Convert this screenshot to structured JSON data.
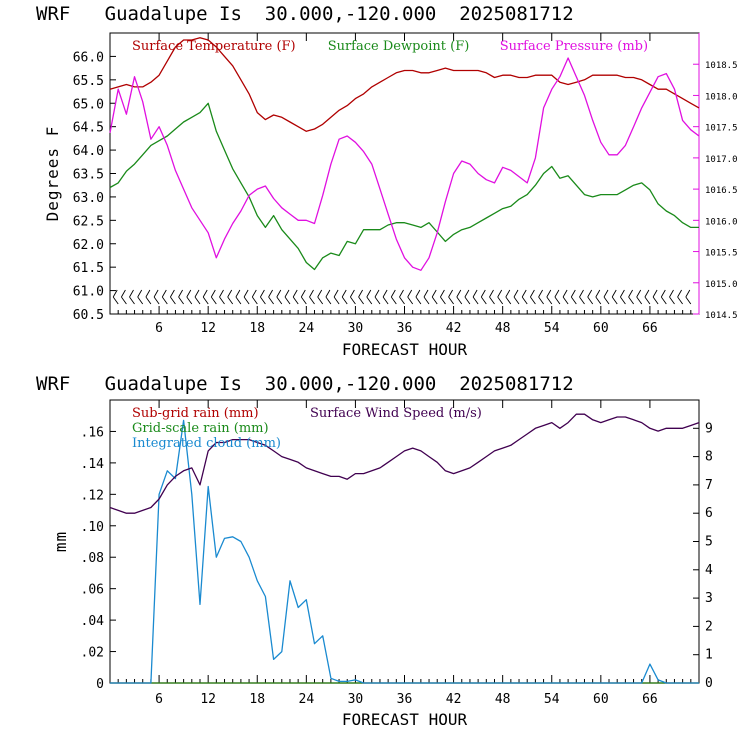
{
  "chart_data": [
    {
      "type": "line",
      "title": "WRF   Guadalupe Is  30.000,-120.000  2025081712",
      "xlabel": "FORECAST HOUR",
      "ylabel": "Degrees F",
      "xlim": [
        0,
        72
      ],
      "x_ticks": [
        "6",
        "12",
        "18",
        "24",
        "30",
        "36",
        "42",
        "48",
        "54",
        "60",
        "66"
      ],
      "ylim": [
        60.5,
        66.5
      ],
      "y_ticks": [
        "60.5",
        "61.0",
        "61.5",
        "62.0",
        "62.5",
        "63.0",
        "63.5",
        "64.0",
        "64.5",
        "65.0",
        "65.5",
        "66.0"
      ],
      "y2lim": [
        1014.5,
        1019.0
      ],
      "y2_ticks": [
        "1014.5",
        "1015.0",
        "1015.5",
        "1016.0",
        "1016.5",
        "1017.0",
        "1017.5",
        "1018.0",
        "1018.5"
      ],
      "x": [
        0,
        1,
        2,
        3,
        4,
        5,
        6,
        7,
        8,
        9,
        10,
        11,
        12,
        13,
        14,
        15,
        16,
        17,
        18,
        19,
        20,
        21,
        22,
        23,
        24,
        25,
        26,
        27,
        28,
        29,
        30,
        31,
        32,
        33,
        34,
        35,
        36,
        37,
        38,
        39,
        40,
        41,
        42,
        43,
        44,
        45,
        46,
        47,
        48,
        49,
        50,
        51,
        52,
        53,
        54,
        55,
        56,
        57,
        58,
        59,
        60,
        61,
        62,
        63,
        64,
        65,
        66,
        67,
        68,
        69,
        70,
        71,
        72
      ],
      "series": [
        {
          "name": "Surface Temperature (F)",
          "color": "#b00000",
          "axis": "left",
          "values": [
            65.3,
            65.35,
            65.4,
            65.35,
            65.35,
            65.45,
            65.6,
            65.9,
            66.2,
            66.35,
            66.35,
            66.4,
            66.35,
            66.2,
            66.0,
            65.8,
            65.5,
            65.2,
            64.8,
            64.65,
            64.75,
            64.7,
            64.6,
            64.5,
            64.4,
            64.45,
            64.55,
            64.7,
            64.85,
            64.95,
            65.1,
            65.2,
            65.35,
            65.45,
            65.55,
            65.65,
            65.7,
            65.7,
            65.65,
            65.65,
            65.7,
            65.75,
            65.7,
            65.7,
            65.7,
            65.7,
            65.65,
            65.55,
            65.6,
            65.6,
            65.55,
            65.55,
            65.6,
            65.6,
            65.6,
            65.45,
            65.4,
            65.45,
            65.5,
            65.6,
            65.6,
            65.6,
            65.6,
            65.55,
            65.55,
            65.5,
            65.4,
            65.3,
            65.3,
            65.2,
            65.1,
            65.0,
            64.9
          ]
        },
        {
          "name": "Surface Dewpoint (F)",
          "color": "#1a8a1a",
          "axis": "left",
          "values": [
            63.2,
            63.3,
            63.55,
            63.7,
            63.9,
            64.1,
            64.2,
            64.3,
            64.45,
            64.6,
            64.7,
            64.8,
            65.0,
            64.4,
            64.0,
            63.6,
            63.3,
            63.0,
            62.6,
            62.35,
            62.6,
            62.3,
            62.1,
            61.9,
            61.6,
            61.45,
            61.7,
            61.8,
            61.75,
            62.05,
            62.0,
            62.3,
            62.3,
            62.3,
            62.4,
            62.45,
            62.45,
            62.4,
            62.35,
            62.45,
            62.25,
            62.05,
            62.2,
            62.3,
            62.35,
            62.45,
            62.55,
            62.65,
            62.75,
            62.8,
            62.95,
            63.05,
            63.25,
            63.5,
            63.65,
            63.4,
            63.45,
            63.25,
            63.05,
            63.0,
            63.05,
            63.05,
            63.05,
            63.15,
            63.25,
            63.3,
            63.15,
            62.85,
            62.7,
            62.6,
            62.45,
            62.35,
            62.35
          ]
        },
        {
          "name": "Surface Pressure (mb)",
          "color": "#e010e0",
          "axis": "right",
          "values": [
            1017.4,
            1018.1,
            1017.7,
            1018.3,
            1017.9,
            1017.3,
            1017.5,
            1017.2,
            1016.8,
            1016.5,
            1016.2,
            1016.0,
            1015.8,
            1015.4,
            1015.7,
            1015.95,
            1016.15,
            1016.4,
            1016.5,
            1016.55,
            1016.35,
            1016.2,
            1016.1,
            1016.0,
            1016.0,
            1015.95,
            1016.4,
            1016.9,
            1017.3,
            1017.35,
            1017.25,
            1017.1,
            1016.9,
            1016.5,
            1016.1,
            1015.7,
            1015.4,
            1015.25,
            1015.2,
            1015.4,
            1015.8,
            1016.3,
            1016.75,
            1016.95,
            1016.9,
            1016.75,
            1016.65,
            1016.6,
            1016.85,
            1016.8,
            1016.7,
            1016.6,
            1017.0,
            1017.8,
            1018.1,
            1018.3,
            1018.6,
            1018.3,
            1018.0,
            1017.6,
            1017.25,
            1017.05,
            1017.05,
            1017.2,
            1017.5,
            1017.8,
            1018.05,
            1018.3,
            1018.35,
            1018.1,
            1017.6,
            1017.45,
            1017.35
          ]
        }
      ],
      "wind_barbs": "row of wind barbs along the bottom of the plot"
    },
    {
      "type": "line",
      "title": "WRF   Guadalupe Is  30.000,-120.000  2025081712",
      "xlabel": "FORECAST HOUR",
      "ylabel": "mm",
      "xlim": [
        0,
        72
      ],
      "x_ticks": [
        "6",
        "12",
        "18",
        "24",
        "30",
        "36",
        "42",
        "48",
        "54",
        "60",
        "66"
      ],
      "ylim": [
        0,
        0.18
      ],
      "y_ticks": [
        "0",
        ".02",
        ".04",
        ".06",
        ".08",
        ".10",
        ".12",
        ".14",
        ".16"
      ],
      "y2lim": [
        0,
        10
      ],
      "y2_ticks": [
        "0",
        "1",
        "2",
        "3",
        "4",
        "5",
        "6",
        "7",
        "8",
        "9"
      ],
      "x": [
        0,
        1,
        2,
        3,
        4,
        5,
        6,
        7,
        8,
        9,
        10,
        11,
        12,
        13,
        14,
        15,
        16,
        17,
        18,
        19,
        20,
        21,
        22,
        23,
        24,
        25,
        26,
        27,
        28,
        29,
        30,
        31,
        32,
        33,
        34,
        35,
        36,
        37,
        38,
        39,
        40,
        41,
        42,
        43,
        44,
        45,
        46,
        47,
        48,
        49,
        50,
        51,
        52,
        53,
        54,
        55,
        56,
        57,
        58,
        59,
        60,
        61,
        62,
        63,
        64,
        65,
        66,
        67,
        68,
        69,
        70,
        71,
        72
      ],
      "series": [
        {
          "name": "Sub-grid rain (mm)",
          "color": "#b00000",
          "axis": "left",
          "values": [
            0,
            0,
            0,
            0,
            0,
            0,
            0,
            0,
            0,
            0,
            0,
            0,
            0,
            0,
            0,
            0,
            0,
            0,
            0,
            0,
            0,
            0,
            0,
            0,
            0,
            0,
            0,
            0,
            0,
            0,
            0,
            0,
            0,
            0,
            0,
            0,
            0,
            0,
            0,
            0,
            0,
            0,
            0,
            0,
            0,
            0,
            0,
            0,
            0,
            0,
            0,
            0,
            0,
            0,
            0,
            0,
            0,
            0,
            0,
            0,
            0,
            0,
            0,
            0,
            0,
            0,
            0,
            0,
            0,
            0,
            0,
            0,
            0
          ]
        },
        {
          "name": "Grid-scale rain (mm)",
          "color": "#1a8a1a",
          "axis": "left",
          "values": [
            0,
            0,
            0,
            0,
            0,
            0,
            0,
            0,
            0,
            0,
            0,
            0,
            0,
            0,
            0,
            0,
            0,
            0,
            0,
            0,
            0,
            0,
            0,
            0,
            0,
            0,
            0,
            0,
            0,
            0,
            0,
            0,
            0,
            0,
            0,
            0,
            0,
            0,
            0,
            0,
            0,
            0,
            0,
            0,
            0,
            0,
            0,
            0,
            0,
            0,
            0,
            0,
            0,
            0,
            0,
            0,
            0,
            0,
            0,
            0,
            0,
            0,
            0,
            0,
            0,
            0,
            0,
            0,
            0,
            0,
            0,
            0,
            0
          ]
        },
        {
          "name": "Integrated cloud (mm)",
          "color": "#1a8ad0",
          "axis": "left",
          "values": [
            0,
            0,
            0,
            0,
            0,
            0,
            0.12,
            0.135,
            0.13,
            0.167,
            0.12,
            0.05,
            0.125,
            0.08,
            0.092,
            0.093,
            0.09,
            0.08,
            0.065,
            0.055,
            0.015,
            0.02,
            0.065,
            0.048,
            0.053,
            0.025,
            0.03,
            0.003,
            0.001,
            0.001,
            0.002,
            0,
            0,
            0,
            0,
            0,
            0,
            0,
            0,
            0,
            0,
            0,
            0,
            0,
            0,
            0,
            0,
            0,
            0,
            0,
            0,
            0,
            0,
            0,
            0,
            0,
            0,
            0,
            0,
            0,
            0,
            0,
            0,
            0,
            0,
            0,
            0.012,
            0.002,
            0,
            0,
            0,
            0,
            0
          ]
        },
        {
          "name": "Surface Wind Speed (m/s)",
          "color": "#400050",
          "axis": "right",
          "values": [
            6.2,
            6.1,
            6.0,
            6.0,
            6.1,
            6.2,
            6.5,
            7.0,
            7.3,
            7.5,
            7.6,
            7.0,
            8.2,
            8.5,
            8.5,
            8.6,
            8.6,
            8.6,
            8.5,
            8.4,
            8.2,
            8.0,
            7.9,
            7.8,
            7.6,
            7.5,
            7.4,
            7.3,
            7.3,
            7.2,
            7.4,
            7.4,
            7.5,
            7.6,
            7.8,
            8.0,
            8.2,
            8.3,
            8.2,
            8.0,
            7.8,
            7.5,
            7.4,
            7.5,
            7.6,
            7.8,
            8.0,
            8.2,
            8.3,
            8.4,
            8.6,
            8.8,
            9.0,
            9.1,
            9.2,
            9.0,
            9.2,
            9.5,
            9.5,
            9.3,
            9.2,
            9.3,
            9.4,
            9.4,
            9.3,
            9.2,
            9.0,
            8.9,
            9.0,
            9.0,
            9.0,
            9.1,
            9.2
          ]
        }
      ]
    }
  ]
}
